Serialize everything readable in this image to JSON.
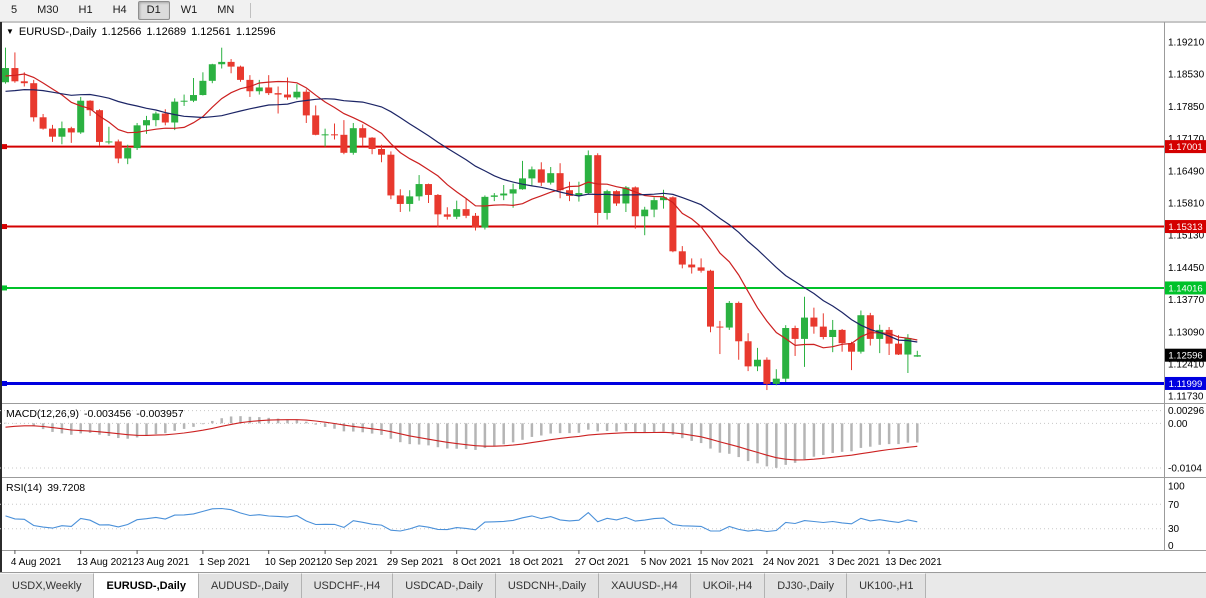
{
  "colors": {
    "bull": "#2bb141",
    "bear": "#e8392e",
    "ma_fast": "#cc2020",
    "ma_slow": "#1c2566",
    "res_line": "#d40000",
    "sup_line": "#00c22a",
    "floor_line": "#0000e0",
    "bid_badge": "#000000",
    "macd_hist": "#b5b5b5",
    "macd_signal": "#cc2222",
    "rsi_line": "#4a90d9"
  },
  "toolbar": {
    "timeframes": [
      {
        "label": "5",
        "active": false
      },
      {
        "label": "M30",
        "active": false
      },
      {
        "label": "H1",
        "active": false
      },
      {
        "label": "H4",
        "active": false
      },
      {
        "label": "D1",
        "active": true
      },
      {
        "label": "W1",
        "active": false
      },
      {
        "label": "MN",
        "active": false
      }
    ]
  },
  "chart": {
    "title": {
      "symbol": "EURUSD-,Daily",
      "open": "1.12566",
      "high": "1.12689",
      "low": "1.12561",
      "close": "1.12596"
    },
    "price_axis": {
      "labels": [
        "1.19210",
        "1.18530",
        "1.17850",
        "1.17170",
        "1.16490",
        "1.15810",
        "1.15130",
        "1.14450",
        "1.13770",
        "1.13090",
        "1.12410",
        "1.11730"
      ]
    },
    "hlines": [
      {
        "value": 1.17001,
        "label": "1.17001",
        "type": "resistance"
      },
      {
        "value": 1.15313,
        "label": "1.15313",
        "type": "resistance"
      },
      {
        "value": 1.14016,
        "label": "1.14016",
        "type": "support"
      },
      {
        "value": 1.11999,
        "label": "1.11999",
        "type": "floor"
      }
    ],
    "bid": {
      "value": 1.12596,
      "label": "1.12596"
    }
  },
  "chart_data": {
    "type": "candlestick",
    "symbol": "EURUSD-",
    "timeframe": "Daily",
    "ohlc_current": {
      "open": 1.12566,
      "high": 1.12689,
      "low": 1.12561,
      "close": 1.12596
    },
    "x_labels": [
      {
        "label": "4 Aug 2021",
        "index": 1
      },
      {
        "label": "13 Aug 2021",
        "index": 8
      },
      {
        "label": "23 Aug 2021",
        "index": 14
      },
      {
        "label": "1 Sep 2021",
        "index": 21
      },
      {
        "label": "10 Sep 2021",
        "index": 28
      },
      {
        "label": "20 Sep 2021",
        "index": 34
      },
      {
        "label": "29 Sep 2021",
        "index": 41
      },
      {
        "label": "8 Oct 2021",
        "index": 48
      },
      {
        "label": "18 Oct 2021",
        "index": 54
      },
      {
        "label": "27 Oct 2021",
        "index": 61
      },
      {
        "label": "5 Nov 2021",
        "index": 68
      },
      {
        "label": "15 Nov 2021",
        "index": 74
      },
      {
        "label": "24 Nov 2021",
        "index": 81
      },
      {
        "label": "3 Dec 2021",
        "index": 88
      },
      {
        "label": "13 Dec 2021",
        "index": 94
      }
    ],
    "seed_closes": [
      1.1925,
      1.1938,
      1.1917,
      1.194,
      1.192,
      1.1882,
      1.1852,
      1.1825,
      1.1812,
      1.1798,
      1.1806,
      1.1789,
      1.1772,
      1.1775,
      1.1792,
      1.1807,
      1.1797,
      1.1772,
      1.1766,
      1.1785,
      1.1801,
      1.1823,
      1.1807,
      1.1834,
      1.1856,
      1.1848,
      1.1864,
      1.1886,
      1.1873,
      1.1835
    ],
    "candles": [
      [
        1.1836,
        1.1909,
        1.1833,
        1.1866
      ],
      [
        1.1866,
        1.1899,
        1.1835,
        1.1838
      ],
      [
        1.1838,
        1.1857,
        1.1827,
        1.1834
      ],
      [
        1.1834,
        1.1841,
        1.1753,
        1.1762
      ],
      [
        1.1762,
        1.1769,
        1.1736,
        1.1738
      ],
      [
        1.1738,
        1.1746,
        1.171,
        1.1721
      ],
      [
        1.1721,
        1.1753,
        1.1705,
        1.1739
      ],
      [
        1.1739,
        1.1742,
        1.1708,
        1.173
      ],
      [
        1.173,
        1.1805,
        1.1727,
        1.1797
      ],
      [
        1.1797,
        1.1798,
        1.1765,
        1.1777
      ],
      [
        1.1777,
        1.1779,
        1.1702,
        1.171
      ],
      [
        1.171,
        1.1742,
        1.1705,
        1.1711
      ],
      [
        1.1711,
        1.1715,
        1.1665,
        1.1675
      ],
      [
        1.1675,
        1.1704,
        1.1663,
        1.1697
      ],
      [
        1.1697,
        1.175,
        1.1693,
        1.1745
      ],
      [
        1.1745,
        1.1765,
        1.1727,
        1.1756
      ],
      [
        1.1756,
        1.1774,
        1.1743,
        1.177
      ],
      [
        1.177,
        1.1779,
        1.1745,
        1.1751
      ],
      [
        1.1751,
        1.1802,
        1.1735,
        1.1795
      ],
      [
        1.1795,
        1.181,
        1.1786,
        1.1797
      ],
      [
        1.1797,
        1.1845,
        1.1794,
        1.1809
      ],
      [
        1.1809,
        1.1857,
        1.1808,
        1.1839
      ],
      [
        1.1839,
        1.1875,
        1.1834,
        1.1874
      ],
      [
        1.1874,
        1.1909,
        1.1865,
        1.1879
      ],
      [
        1.1879,
        1.1885,
        1.1855,
        1.1869
      ],
      [
        1.1869,
        1.1871,
        1.1837,
        1.1841
      ],
      [
        1.1841,
        1.1851,
        1.1805,
        1.1817
      ],
      [
        1.1817,
        1.1841,
        1.181,
        1.1825
      ],
      [
        1.1825,
        1.1851,
        1.1809,
        1.1813
      ],
      [
        1.1813,
        1.1827,
        1.177,
        1.181
      ],
      [
        1.181,
        1.1846,
        1.1799,
        1.1804
      ],
      [
        1.1804,
        1.1832,
        1.18,
        1.1816
      ],
      [
        1.1816,
        1.1821,
        1.175,
        1.1766
      ],
      [
        1.1766,
        1.1787,
        1.1724,
        1.1725
      ],
      [
        1.1725,
        1.1738,
        1.17,
        1.1726
      ],
      [
        1.1726,
        1.1749,
        1.1715,
        1.1725
      ],
      [
        1.1725,
        1.1756,
        1.1684,
        1.1687
      ],
      [
        1.1687,
        1.175,
        1.1683,
        1.1739
      ],
      [
        1.1739,
        1.1747,
        1.1701,
        1.1719
      ],
      [
        1.1719,
        1.172,
        1.1684,
        1.1695
      ],
      [
        1.1695,
        1.1704,
        1.1667,
        1.1683
      ],
      [
        1.1683,
        1.169,
        1.1589,
        1.1597
      ],
      [
        1.1597,
        1.161,
        1.1562,
        1.1579
      ],
      [
        1.1579,
        1.1608,
        1.1563,
        1.1595
      ],
      [
        1.1595,
        1.164,
        1.1586,
        1.1621
      ],
      [
        1.1621,
        1.1622,
        1.1581,
        1.1598
      ],
      [
        1.1598,
        1.16,
        1.1529,
        1.1557
      ],
      [
        1.1557,
        1.1572,
        1.1546,
        1.1552
      ],
      [
        1.1552,
        1.1586,
        1.1547,
        1.1568
      ],
      [
        1.1568,
        1.1591,
        1.1549,
        1.1554
      ],
      [
        1.1554,
        1.156,
        1.1523,
        1.1529
      ],
      [
        1.1529,
        1.1597,
        1.1525,
        1.1594
      ],
      [
        1.1594,
        1.1602,
        1.1585,
        1.1597
      ],
      [
        1.1597,
        1.1619,
        1.1587,
        1.1601
      ],
      [
        1.1601,
        1.1622,
        1.1571,
        1.161
      ],
      [
        1.161,
        1.167,
        1.1609,
        1.1633
      ],
      [
        1.1633,
        1.1658,
        1.1617,
        1.1652
      ],
      [
        1.1652,
        1.1667,
        1.1617,
        1.1624
      ],
      [
        1.1624,
        1.1657,
        1.162,
        1.1644
      ],
      [
        1.1644,
        1.1665,
        1.1591,
        1.1608
      ],
      [
        1.1608,
        1.1626,
        1.1585,
        1.1596
      ],
      [
        1.1596,
        1.1626,
        1.1584,
        1.1602
      ],
      [
        1.1602,
        1.1692,
        1.1601,
        1.1682
      ],
      [
        1.1682,
        1.1686,
        1.1535,
        1.156
      ],
      [
        1.156,
        1.1609,
        1.1546,
        1.1606
      ],
      [
        1.1606,
        1.1608,
        1.1575,
        1.158
      ],
      [
        1.158,
        1.1617,
        1.1562,
        1.1614
      ],
      [
        1.1614,
        1.1616,
        1.1527,
        1.1553
      ],
      [
        1.1553,
        1.1573,
        1.1513,
        1.1567
      ],
      [
        1.1567,
        1.1593,
        1.1551,
        1.1587
      ],
      [
        1.1587,
        1.1609,
        1.1569,
        1.1593
      ],
      [
        1.1593,
        1.1595,
        1.1477,
        1.1479
      ],
      [
        1.1479,
        1.149,
        1.1443,
        1.1451
      ],
      [
        1.1451,
        1.1464,
        1.1432,
        1.1445
      ],
      [
        1.1445,
        1.1464,
        1.1434,
        1.1438
      ],
      [
        1.1438,
        1.144,
        1.1308,
        1.132
      ],
      [
        1.132,
        1.1332,
        1.1262,
        1.1318
      ],
      [
        1.1318,
        1.1374,
        1.1313,
        1.137
      ],
      [
        1.137,
        1.1373,
        1.125,
        1.1289
      ],
      [
        1.1289,
        1.1306,
        1.1226,
        1.1236
      ],
      [
        1.1236,
        1.1275,
        1.1226,
        1.125
      ],
      [
        1.125,
        1.1255,
        1.1186,
        1.1199
      ],
      [
        1.1199,
        1.123,
        1.1196,
        1.121
      ],
      [
        1.121,
        1.1323,
        1.1203,
        1.1317
      ],
      [
        1.1317,
        1.1322,
        1.1258,
        1.1294
      ],
      [
        1.1294,
        1.1383,
        1.1235,
        1.1339
      ],
      [
        1.1339,
        1.136,
        1.1305,
        1.132
      ],
      [
        1.132,
        1.1348,
        1.1293,
        1.1298
      ],
      [
        1.1298,
        1.1334,
        1.1266,
        1.1313
      ],
      [
        1.1313,
        1.1315,
        1.1267,
        1.1285
      ],
      [
        1.1285,
        1.1288,
        1.1228,
        1.1267
      ],
      [
        1.1267,
        1.1354,
        1.1263,
        1.1344
      ],
      [
        1.1344,
        1.1349,
        1.128,
        1.1294
      ],
      [
        1.1294,
        1.1324,
        1.1264,
        1.1313
      ],
      [
        1.1313,
        1.1319,
        1.126,
        1.1284
      ],
      [
        1.1284,
        1.1302,
        1.126,
        1.1261
      ],
      [
        1.1261,
        1.1304,
        1.1222,
        1.1296
      ],
      [
        1.12566,
        1.12689,
        1.12561,
        1.12596
      ]
    ],
    "overlays": [
      {
        "name": "ma-fast",
        "type": "sma",
        "period": 10
      },
      {
        "name": "ma-slow",
        "type": "sma",
        "period": 21
      }
    ]
  },
  "macd": {
    "title": "MACD(12,26,9)",
    "value_main": "-0.003456",
    "value_signal": "-0.003957",
    "fast": 12,
    "slow": 26,
    "signal": 9,
    "axis": [
      {
        "label": "0.00296",
        "value": 0.00296
      },
      {
        "label": "0.00",
        "value": 0
      },
      {
        "label": "-0.0104",
        "value": -0.0104
      }
    ]
  },
  "rsi": {
    "title": "RSI(14)",
    "value": "39.7208",
    "period": 14,
    "levels": [
      70,
      30
    ],
    "axis": [
      {
        "label": "100",
        "value": 100
      },
      {
        "label": "70",
        "value": 70
      },
      {
        "label": "30",
        "value": 30
      },
      {
        "label": "0",
        "value": 0
      }
    ]
  },
  "tabs": [
    {
      "label": "USDX,Weekly",
      "active": false
    },
    {
      "label": "EURUSD-,Daily",
      "active": true
    },
    {
      "label": "AUDUSD-,Daily",
      "active": false
    },
    {
      "label": "USDCHF-,H4",
      "active": false
    },
    {
      "label": "USDCAD-,Daily",
      "active": false
    },
    {
      "label": "USDCNH-,Daily",
      "active": false
    },
    {
      "label": "XAUUSD-,H4",
      "active": false
    },
    {
      "label": "UKOil-,H4",
      "active": false
    },
    {
      "label": "DJ30-,Daily",
      "active": false
    },
    {
      "label": "UK100-,H1",
      "active": false
    }
  ]
}
